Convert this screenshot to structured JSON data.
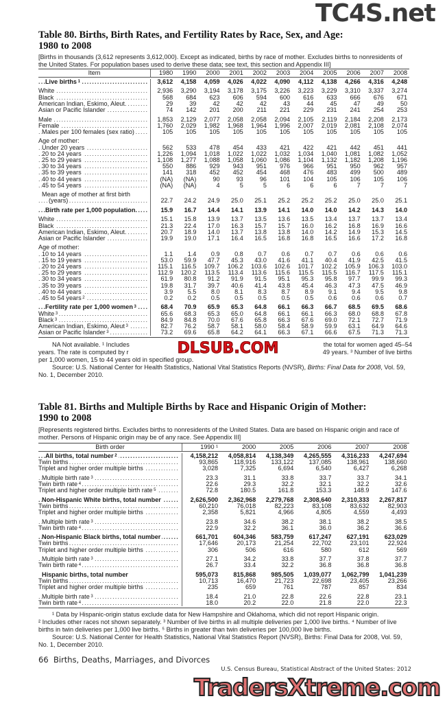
{
  "watermarks": {
    "top": "TC4S.net",
    "middle": "DLSUB.COM",
    "bottom": "TradersXtreme.com"
  },
  "table80": {
    "title_line1": "Table 80. Births, Birth Rates, and Fertility Rates by Race, Sex, and Age:",
    "title_line2": "1980 to 2008",
    "intro": "[Births in thousands (3,612 represents 3,612,000). Except as indicated, births by race of mother. Excludes births to nonresidents of the United States. For population bases used to derive these data; see text, this section and Appendix III]",
    "header_label": "Item",
    "years": [
      "1980",
      "1990",
      "2000",
      "2001",
      "2002",
      "2003",
      "2004",
      "2005",
      "2006",
      "2007",
      "2008"
    ],
    "rows": [
      {
        "label": "Live births",
        "sup": "1",
        "bold": true,
        "indent": 2,
        "values": [
          "3,612",
          "4,158",
          "4,059",
          "4,026",
          "4,022",
          "4,090",
          "4,112",
          "4,138",
          "4,266",
          "4,316",
          "4,248"
        ]
      },
      {
        "gap": true
      },
      {
        "label": "White",
        "values": [
          "2,936",
          "3,290",
          "3,194",
          "3,178",
          "3,175",
          "3,226",
          "3,223",
          "3,229",
          "3,310",
          "3,337",
          "3,274"
        ]
      },
      {
        "label": "Black",
        "values": [
          "568",
          "684",
          "623",
          "606",
          "594",
          "600",
          "616",
          "633",
          "666",
          "676",
          "671"
        ]
      },
      {
        "label": "American Indian, Eskimo, Aleut.",
        "values": [
          "29",
          "39",
          "42",
          "42",
          "42",
          "43",
          "44",
          "45",
          "47",
          "49",
          "50"
        ]
      },
      {
        "label": "Asian or Pacific Islander",
        "values": [
          "74",
          "142",
          "201",
          "200",
          "211",
          "221",
          "229",
          "231",
          "241",
          "254",
          "253"
        ]
      },
      {
        "gap": true
      },
      {
        "label": "Male",
        "values": [
          "1,853",
          "2,129",
          "2,077",
          "2,058",
          "2,058",
          "2,094",
          "2,105",
          "2,119",
          "2,184",
          "2,208",
          "2,173"
        ]
      },
      {
        "label": "Female",
        "values": [
          "1,760",
          "2,029",
          "1,982",
          "1,968",
          "1,964",
          "1,996",
          "2,007",
          "2,019",
          "2,081",
          "2,108",
          "2,074"
        ]
      },
      {
        "label": "Males per 100 females (sex ratio)",
        "indent": 1,
        "values": [
          "105",
          "105",
          "105",
          "105",
          "105",
          "105",
          "105",
          "105",
          "105",
          "105",
          "105"
        ]
      },
      {
        "gap": true
      },
      {
        "label": "Age of mother:",
        "nodots": true,
        "values": []
      },
      {
        "label": "Under 20 years",
        "indent": 1,
        "values": [
          "562",
          "533",
          "478",
          "454",
          "433",
          "421",
          "422",
          "421",
          "442",
          "451",
          "441"
        ]
      },
      {
        "label": "20 to 24 years",
        "indent": 1,
        "values": [
          "1,226",
          "1,094",
          "1,018",
          "1,022",
          "1,022",
          "1,032",
          "1,034",
          "1,040",
          "1,081",
          "1,082",
          "1,052"
        ]
      },
      {
        "label": "25 to 29 years",
        "indent": 1,
        "values": [
          "1,108",
          "1,277",
          "1,088",
          "1,058",
          "1,060",
          "1,086",
          "1,104",
          "1,132",
          "1,182",
          "1,208",
          "1,196"
        ]
      },
      {
        "label": "30 to 34 years",
        "indent": 1,
        "values": [
          "550",
          "886",
          "929",
          "943",
          "951",
          "976",
          "966",
          "951",
          "950",
          "962",
          "957"
        ]
      },
      {
        "label": "35 to 39 years",
        "indent": 1,
        "values": [
          "141",
          "318",
          "452",
          "452",
          "454",
          "468",
          "476",
          "483",
          "499",
          "500",
          "489"
        ]
      },
      {
        "label": "40 to 44 years",
        "indent": 1,
        "values": [
          "(NA)",
          "(NA)",
          "90",
          "93",
          "96",
          "101",
          "104",
          "105",
          "106",
          "105",
          "106"
        ]
      },
      {
        "label": "45 to 54 years",
        "indent": 1,
        "values": [
          "(NA)",
          "(NA)",
          "4",
          "5",
          "5",
          "6",
          "6",
          "6",
          "7",
          "7",
          "7"
        ]
      },
      {
        "gap": true
      },
      {
        "label": "Mean age of mother at first birth",
        "indent": 1,
        "nodots": true,
        "values": []
      },
      {
        "label": "(years)",
        "indent": 3,
        "values": [
          "22.7",
          "24.2",
          "24.9",
          "25.0",
          "25.1",
          "25.2",
          "25.2",
          "25.2",
          "25.0",
          "25.0",
          "25.1"
        ]
      },
      {
        "gap": true
      },
      {
        "label": "Birth rate per 1,000 population.",
        "bold": true,
        "indent": 2,
        "values": [
          "15.9",
          "16.7",
          "14.4",
          "14.1",
          "13.9",
          "14.1",
          "14.0",
          "14.0",
          "14.2",
          "14.3",
          "14.0"
        ]
      },
      {
        "gap": true
      },
      {
        "label": "White",
        "values": [
          "15.1",
          "15.8",
          "13.9",
          "13.7",
          "13.5",
          "13.6",
          "13.5",
          "13.4",
          "13.7",
          "13.7",
          "13.4"
        ]
      },
      {
        "label": "Black",
        "values": [
          "21.3",
          "22.4",
          "17.0",
          "16.3",
          "15.7",
          "15.7",
          "16.0",
          "16.2",
          "16.8",
          "16.9",
          "16.6"
        ]
      },
      {
        "label": "American Indian, Eskimo, Aleut.",
        "values": [
          "20.7",
          "18.9",
          "14.0",
          "13.7",
          "13.8",
          "13.8",
          "14.0",
          "14.2",
          "14.9",
          "15.3",
          "14.5"
        ]
      },
      {
        "label": "Asian or Pacific Islander",
        "values": [
          "19.9",
          "19.0",
          "17.1",
          "16.4",
          "16.5",
          "16.8",
          "16.8",
          "16.5",
          "16.6",
          "17.2",
          "16.8"
        ]
      },
      {
        "gap": true
      },
      {
        "label": "Age of mother:",
        "nodots": true,
        "values": []
      },
      {
        "label": "10 to 14 years",
        "indent": 1,
        "values": [
          "1.1",
          "1.4",
          "0.9",
          "0.8",
          "0.7",
          "0.6",
          "0.7",
          "0.7",
          "0.6",
          "0.6",
          "0.6"
        ]
      },
      {
        "label": "15 to 19 years",
        "indent": 1,
        "values": [
          "53.0",
          "59.9",
          "47.7",
          "45.3",
          "43.0",
          "41.6",
          "41.1",
          "40.4",
          "41.9",
          "42.5",
          "41.5"
        ]
      },
      {
        "label": "20 to 24 years",
        "indent": 1,
        "values": [
          "115.1",
          "116.5",
          "109.7",
          "106.2",
          "103.6",
          "102.6",
          "101.7",
          "102.2",
          "105.9",
          "106.3",
          "103.0"
        ]
      },
      {
        "label": "25 to 29 years",
        "indent": 1,
        "values": [
          "112.9",
          "120.2",
          "113.5",
          "113.4",
          "113.6",
          "115.6",
          "115.5",
          "115.5",
          "116.7",
          "117.5",
          "115.1"
        ]
      },
      {
        "label": "30 to 34 years",
        "indent": 1,
        "values": [
          "61.9",
          "80.8",
          "91.2",
          "91.9",
          "91.5",
          "95.1",
          "95.3",
          "95.8",
          "97.7",
          "99.9",
          "99.3"
        ]
      },
      {
        "label": "35 to 39 years",
        "indent": 1,
        "values": [
          "19.8",
          "31.7",
          "39.7",
          "40.6",
          "41.4",
          "43.8",
          "45.4",
          "46.3",
          "47.3",
          "47.5",
          "46.9"
        ]
      },
      {
        "label": "40 to 44 years",
        "indent": 1,
        "values": [
          "3.9",
          "5.5",
          "8.0",
          "8.1",
          "8.3",
          "8.7",
          "8.9",
          "9.1",
          "9.4",
          "9.5",
          "9.8"
        ]
      },
      {
        "label": "45 to 54 years",
        "sup": "2",
        "indent": 1,
        "values": [
          "0.2",
          "0.2",
          "0.5",
          "0.5",
          "0.5",
          "0.5",
          "0.5",
          "0.6",
          "0.6",
          "0.6",
          "0.7"
        ]
      },
      {
        "gap": true
      },
      {
        "label": "Fertility rate per 1,000 women",
        "sup": "3",
        "bold": true,
        "indent": 2,
        "values": [
          "68.4",
          "70.9",
          "65.9",
          "65.3",
          "64.8",
          "66.1",
          "66.3",
          "66.7",
          "68.5",
          "69.5",
          "68.6"
        ]
      },
      {
        "label": "White",
        "sup": "3",
        "values": [
          "65.6",
          "68.3",
          "65.3",
          "65.0",
          "64.8",
          "66.1",
          "66.1",
          "66.3",
          "68.0",
          "68.8",
          "67.8"
        ]
      },
      {
        "label": "Black",
        "sup": "3",
        "values": [
          "84.9",
          "84.8",
          "70.0",
          "67.6",
          "65.8",
          "66.3",
          "67.6",
          "69.0",
          "72.1",
          "72.7",
          "71.9"
        ]
      },
      {
        "label": "American Indian, Eskimo, Aleut",
        "sup": "3",
        "values": [
          "82.7",
          "76.2",
          "58.7",
          "58.1",
          "58.0",
          "58.4",
          "58.9",
          "59.9",
          "63.1",
          "64.9",
          "64.6"
        ]
      },
      {
        "label": "Asian or Pacific Islander",
        "sup": "3",
        "values": [
          "73.2",
          "69.6",
          "65.8",
          "64.2",
          "64.1",
          "66.3",
          "67.1",
          "66.6",
          "67.5",
          "71.3",
          "71.3"
        ]
      }
    ],
    "footnote_line1_a": "NA Not available. ¹ Includes",
    "footnote_line1_b": "the total for women aged 45–54",
    "footnote_line2_a": "years. The rate is computed by r",
    "footnote_line2_b": "49 years. ³ Number of live births",
    "footnote_line3": "per 1,000 women, 15 to 44 years old in specified group.",
    "source_prefix": "Source: U.S. National Center for Health Statistics, National Vital Statistics Reports (NVSR), ",
    "source_italic": "Births: Final Data for 2008",
    "source_suffix": ", Vol. 59, No. 1, December 2010."
  },
  "table81": {
    "title_line1": "Table 81. Births and Multiple Births by Race and Hispanic Origin of Mother:",
    "title_line2": "1990 to 2008",
    "intro": "[Represents registered births. Excludes births to nonresidents of the United States. Data are based on Hispanic origin and race of mother. Persons of Hispanic origin may be of any race. See Appendix III]",
    "header_label": "Birth order",
    "years": [
      "1990 ¹",
      "2000",
      "2005",
      "2006",
      "2007",
      "2008"
    ],
    "rows": [
      {
        "label": "All births, total number",
        "sup": "2",
        "bold": true,
        "indent": 2,
        "values": [
          "4,158,212",
          "4,058,814",
          "4,138,349",
          "4,265,555",
          "4,316,233",
          "4,247,694"
        ]
      },
      {
        "label": "Twin births",
        "values": [
          "93,865",
          "118,916",
          "133,122",
          "137,085",
          "138,961",
          "138,660"
        ]
      },
      {
        "label": "Triplet and higher order multiple births",
        "values": [
          "3,028",
          "7,325",
          "6,694",
          "6,540",
          "6,427",
          "6,268"
        ]
      },
      {
        "gap": true
      },
      {
        "label": "Multiple birth rate",
        "sup": "3",
        "indent": 1,
        "values": [
          "23.3",
          "31.1",
          "33.8",
          "33.7",
          "33.7",
          "34.1"
        ]
      },
      {
        "label": "Twin birth rate",
        "sup": "4",
        "values": [
          "22.6",
          "29.3",
          "32.2",
          "32.1",
          "32.2",
          "32.6"
        ]
      },
      {
        "label": "Triplet and higher order multiple birth rate",
        "sup": "5",
        "values": [
          "72.8",
          "180.5",
          "161.8",
          "153.3",
          "148.9",
          "147.6"
        ]
      },
      {
        "gap": true
      },
      {
        "label": "Non-Hispanic White births, total number",
        "bold": true,
        "indent": 1,
        "values": [
          "2,626,500",
          "2,362,968",
          "2,279,768",
          "2,308,640",
          "2,310,333",
          "2,267,817"
        ]
      },
      {
        "label": "Twin births",
        "values": [
          "60,210",
          "76,018",
          "82,223",
          "83,108",
          "83,632",
          "82,903"
        ]
      },
      {
        "label": "Triplet and higher order multiple births",
        "values": [
          "2,358",
          "5,821",
          "4,966",
          "4,805",
          "4,559",
          "4,493"
        ]
      },
      {
        "gap": true
      },
      {
        "label": "Multiple birth rate",
        "sup": "3",
        "indent": 1,
        "values": [
          "23.8",
          "34.6",
          "38.2",
          "38.1",
          "38.2",
          "38.5"
        ]
      },
      {
        "label": "Twin birth rate",
        "sup": "4",
        "values": [
          "22.9",
          "32.2",
          "36.1",
          "36.0",
          "36.2",
          "36.6"
        ]
      },
      {
        "gap": true
      },
      {
        "label": "Non-Hispanic Black births, total number",
        "bold": true,
        "indent": 1,
        "values": [
          "661,701",
          "604,346",
          "583,759",
          "617,247",
          "627,191",
          "623,029"
        ]
      },
      {
        "label": "Twin births",
        "values": [
          "17,646",
          "20,173",
          "21,254",
          "22,702",
          "23,101",
          "22,924"
        ]
      },
      {
        "label": "Triplet and higher order multiple births",
        "values": [
          "306",
          "506",
          "616",
          "580",
          "612",
          "569"
        ]
      },
      {
        "gap": true
      },
      {
        "label": "Multiple birth rate",
        "sup": "3",
        "indent": 1,
        "values": [
          "27.1",
          "34.2",
          "33.8",
          "37.7",
          "37.8",
          "37.7"
        ]
      },
      {
        "label": "Twin birth rate",
        "sup": "4",
        "values": [
          "26.7",
          "33.4",
          "32.2",
          "36.8",
          "36.8",
          "36.8"
        ]
      },
      {
        "gap": true
      },
      {
        "label": "Hispanic births, total number",
        "bold": true,
        "indent": 1,
        "nodots": true,
        "values": [
          "595,073",
          "815,868",
          "985,505",
          "1,039,077",
          "1,062,799",
          "1,041,239"
        ]
      },
      {
        "label": "Twin births",
        "values": [
          "10,713",
          "16,470",
          "21,723",
          "22,698",
          "23,405",
          "23,266"
        ]
      },
      {
        "label": "Triplet and higher order multiple births",
        "values": [
          "235",
          "659",
          "761",
          "787",
          "857",
          "834"
        ]
      },
      {
        "gap": true
      },
      {
        "label": "Multiple birth rate",
        "sup": "3",
        "indent": 1,
        "values": [
          "18.4",
          "21.0",
          "22.8",
          "22.6",
          "22.8",
          "23.1"
        ]
      },
      {
        "label": "Twin birth rate",
        "sup": "4",
        "values": [
          "18.0",
          "20.2",
          "22.0",
          "21.8",
          "22.0",
          "22.3"
        ]
      }
    ],
    "footnote1": "¹ Data by Hispanic-origin status exclude data for New Hampshire and Oklahoma, which did not report Hispanic origin.",
    "footnote2": "² Includes other races not shown separately. ³ Number of live births in all multiple deliveries per 1,000 live births. ⁴ Number of live births in twin deliveries per 1,000 live births. ⁵ Births in greater than twin deliveries per 100,000 live births.",
    "source": "Source: U.S. National Center for Health Statistics, National Vital Statistics Report (NVSR), Births: Final Data for 2008, Vol. 59, No. 1, December 2010."
  },
  "page_footer": {
    "page_number": "66",
    "section": "Births, Deaths, Marriages, and Divorces",
    "publication": "U.S. Census Bureau, Statistical Abstract of the United States: 2012"
  }
}
